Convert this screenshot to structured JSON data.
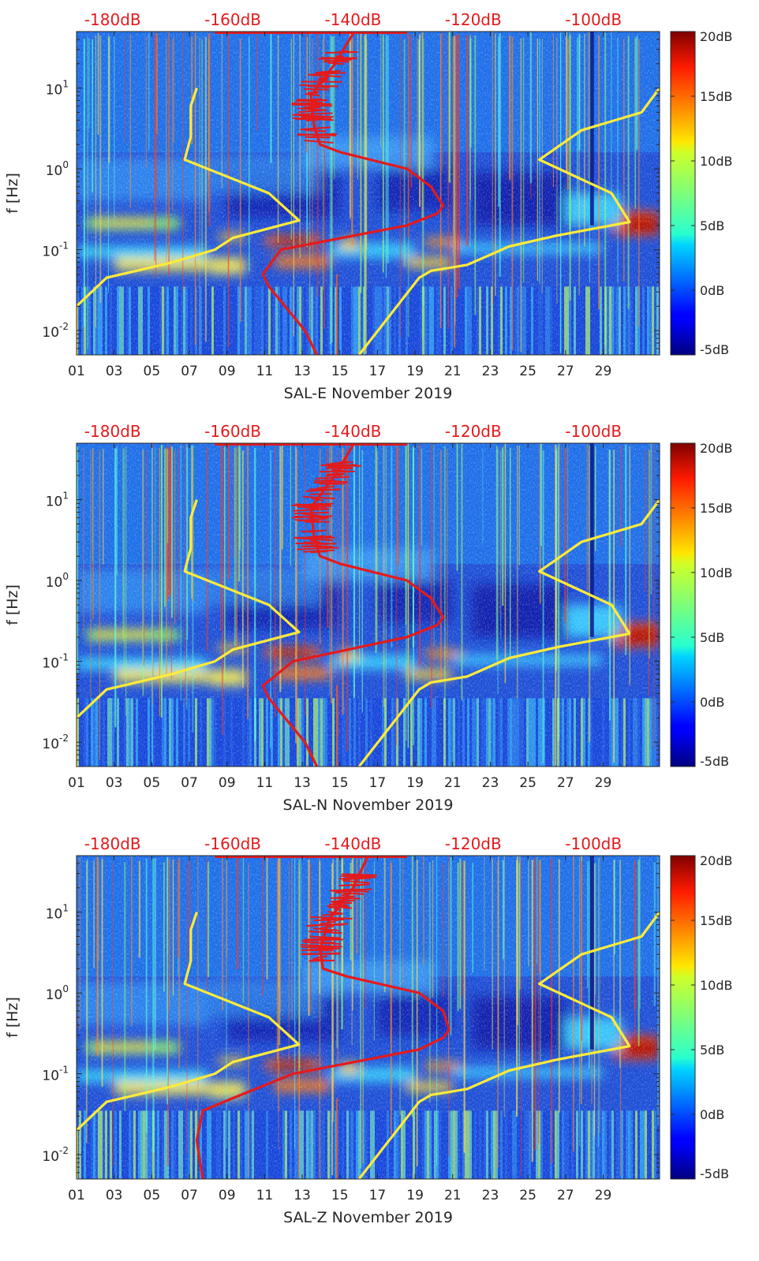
{
  "chart_data": [
    {
      "type": "heatmap",
      "panel": "SAL-E",
      "xlabel": "SAL-E November 2019",
      "ylabel": "f [Hz]",
      "x_range": [
        1,
        32
      ],
      "y_range": [
        0.005,
        50
      ],
      "y_scale": "log",
      "x_ticks": [
        "01",
        "03",
        "05",
        "07",
        "09",
        "11",
        "13",
        "15",
        "17",
        "19",
        "21",
        "23",
        "25",
        "27",
        "29"
      ],
      "y_ticks": [
        {
          "value": 0.01,
          "label": "10",
          "exp": "-2"
        },
        {
          "value": 0.1,
          "label": "10",
          "exp": "-1"
        },
        {
          "value": 1,
          "label": "10",
          "exp": "0"
        },
        {
          "value": 10,
          "label": "10",
          "exp": "1"
        }
      ],
      "top_axis_ticks": [
        "-180dB",
        "-160dB",
        "-140dB",
        "-120dB",
        "-100dB"
      ],
      "top_axis_range": [
        -186,
        -89
      ],
      "colorbar": {
        "range": [
          -5,
          20
        ],
        "ticks": [
          "20dB",
          "15dB",
          "10dB",
          "5dB",
          "0dB",
          "-5dB"
        ],
        "colormap": "jet"
      },
      "curves": [
        {
          "color": "#e41a1c",
          "x_db": [
            -139.8,
            -143,
            -147,
            -146.5,
            -145.5,
            -142,
            -131,
            -127,
            -125,
            -126,
            -131,
            -152,
            -155,
            -154,
            -148,
            -146
          ],
          "y": [
            50,
            20,
            8,
            3.5,
            2,
            1.6,
            1,
            0.6,
            0.35,
            0.28,
            0.2,
            0.1,
            0.05,
            0.035,
            0.01,
            0.005
          ]
        },
        {
          "color": "#ffeb3b",
          "x_db": [
            -166,
            -167,
            -167,
            -168,
            -154,
            -149,
            -160,
            -163,
            -170,
            -176,
            -181,
            -186,
            -186
          ],
          "y": [
            10,
            6,
            2.5,
            1.3,
            0.5,
            0.23,
            0.14,
            0.1,
            0.07,
            0.055,
            0.045,
            0.02,
            0.005
          ]
        },
        {
          "color": "#ffeb3b",
          "x_db": [
            -89,
            -92,
            -102,
            -109,
            -97,
            -94,
            -106,
            -114,
            -121,
            -125,
            -127,
            -129,
            -139
          ],
          "y": [
            10,
            5,
            3,
            1.3,
            0.5,
            0.22,
            0.15,
            0.11,
            0.065,
            0.058,
            0.055,
            0.045,
            0.005
          ]
        }
      ]
    },
    {
      "type": "heatmap",
      "panel": "SAL-N",
      "xlabel": "SAL-N November 2019",
      "ylabel": "f [Hz]",
      "x_range": [
        1,
        32
      ],
      "y_range": [
        0.005,
        50
      ],
      "y_scale": "log",
      "x_ticks": [
        "01",
        "03",
        "05",
        "07",
        "09",
        "11",
        "13",
        "15",
        "17",
        "19",
        "21",
        "23",
        "25",
        "27",
        "29"
      ],
      "y_ticks": [
        {
          "value": 0.01,
          "label": "10",
          "exp": "-2"
        },
        {
          "value": 0.1,
          "label": "10",
          "exp": "-1"
        },
        {
          "value": 1,
          "label": "10",
          "exp": "0"
        },
        {
          "value": 10,
          "label": "10",
          "exp": "1"
        }
      ],
      "top_axis_ticks": [
        "-180dB",
        "-160dB",
        "-140dB",
        "-120dB",
        "-100dB"
      ],
      "top_axis_range": [
        -186,
        -89
      ],
      "colorbar": {
        "range": [
          -5,
          20
        ],
        "ticks": [
          "20dB",
          "15dB",
          "10dB",
          "5dB",
          "0dB",
          "-5dB"
        ],
        "colormap": "jet"
      },
      "curves": [
        {
          "color": "#e41a1c",
          "x_db": [
            -139.8,
            -143,
            -147,
            -146.5,
            -145.5,
            -142,
            -131,
            -127,
            -125,
            -126,
            -131,
            -150,
            -155,
            -154,
            -148,
            -146
          ],
          "y": [
            50,
            20,
            8,
            3.5,
            2,
            1.6,
            1,
            0.6,
            0.35,
            0.28,
            0.2,
            0.1,
            0.05,
            0.035,
            0.01,
            0.005
          ]
        },
        {
          "color": "#ffeb3b",
          "x_db": [
            -166,
            -167,
            -167,
            -168,
            -154,
            -149,
            -160,
            -163,
            -170,
            -176,
            -181,
            -186,
            -186
          ],
          "y": [
            10,
            6,
            2.5,
            1.3,
            0.5,
            0.23,
            0.14,
            0.1,
            0.07,
            0.055,
            0.045,
            0.02,
            0.005
          ]
        },
        {
          "color": "#ffeb3b",
          "x_db": [
            -89,
            -92,
            -102,
            -109,
            -97,
            -94,
            -106,
            -114,
            -121,
            -125,
            -127,
            -129,
            -139
          ],
          "y": [
            10,
            5,
            3,
            1.3,
            0.5,
            0.22,
            0.15,
            0.11,
            0.065,
            0.058,
            0.055,
            0.045,
            0.005
          ]
        }
      ]
    },
    {
      "type": "heatmap",
      "panel": "SAL-Z",
      "xlabel": "SAL-Z November 2019",
      "ylabel": "f [Hz]",
      "x_range": [
        1,
        32
      ],
      "y_range": [
        0.005,
        50
      ],
      "y_scale": "log",
      "x_ticks": [
        "01",
        "03",
        "05",
        "07",
        "09",
        "11",
        "13",
        "15",
        "17",
        "19",
        "21",
        "23",
        "25",
        "27",
        "29"
      ],
      "y_ticks": [
        {
          "value": 0.01,
          "label": "10",
          "exp": "-2"
        },
        {
          "value": 0.1,
          "label": "10",
          "exp": "-1"
        },
        {
          "value": 1,
          "label": "10",
          "exp": "0"
        },
        {
          "value": 10,
          "label": "10",
          "exp": "1"
        }
      ],
      "top_axis_ticks": [
        "-180dB",
        "-160dB",
        "-140dB",
        "-120dB",
        "-100dB"
      ],
      "top_axis_range": [
        -186,
        -89
      ],
      "colorbar": {
        "range": [
          -5,
          20
        ],
        "ticks": [
          "20dB",
          "15dB",
          "10dB",
          "5dB",
          "0dB",
          "-5dB"
        ],
        "colormap": "jet"
      },
      "curves": [
        {
          "color": "#e41a1c",
          "x_db": [
            -137.5,
            -140,
            -144,
            -145.5,
            -145,
            -141,
            -129,
            -125,
            -124,
            -125,
            -129,
            -150,
            -160,
            -165,
            -166,
            -165
          ],
          "y": [
            50,
            20,
            8,
            3.5,
            2,
            1.6,
            1,
            0.6,
            0.35,
            0.28,
            0.2,
            0.1,
            0.05,
            0.035,
            0.015,
            0.005
          ]
        },
        {
          "color": "#ffeb3b",
          "x_db": [
            -166,
            -167,
            -167,
            -168,
            -154,
            -149,
            -160,
            -163,
            -170,
            -176,
            -181,
            -186,
            -186
          ],
          "y": [
            10,
            6,
            2.5,
            1.3,
            0.5,
            0.23,
            0.14,
            0.1,
            0.07,
            0.055,
            0.045,
            0.02,
            0.005
          ]
        },
        {
          "color": "#ffeb3b",
          "x_db": [
            -89,
            -92,
            -102,
            -109,
            -97,
            -94,
            -106,
            -114,
            -121,
            -125,
            -127,
            -129,
            -139
          ],
          "y": [
            10,
            5,
            3,
            1.3,
            0.5,
            0.22,
            0.15,
            0.11,
            0.065,
            0.058,
            0.055,
            0.045,
            0.005
          ]
        }
      ]
    }
  ]
}
